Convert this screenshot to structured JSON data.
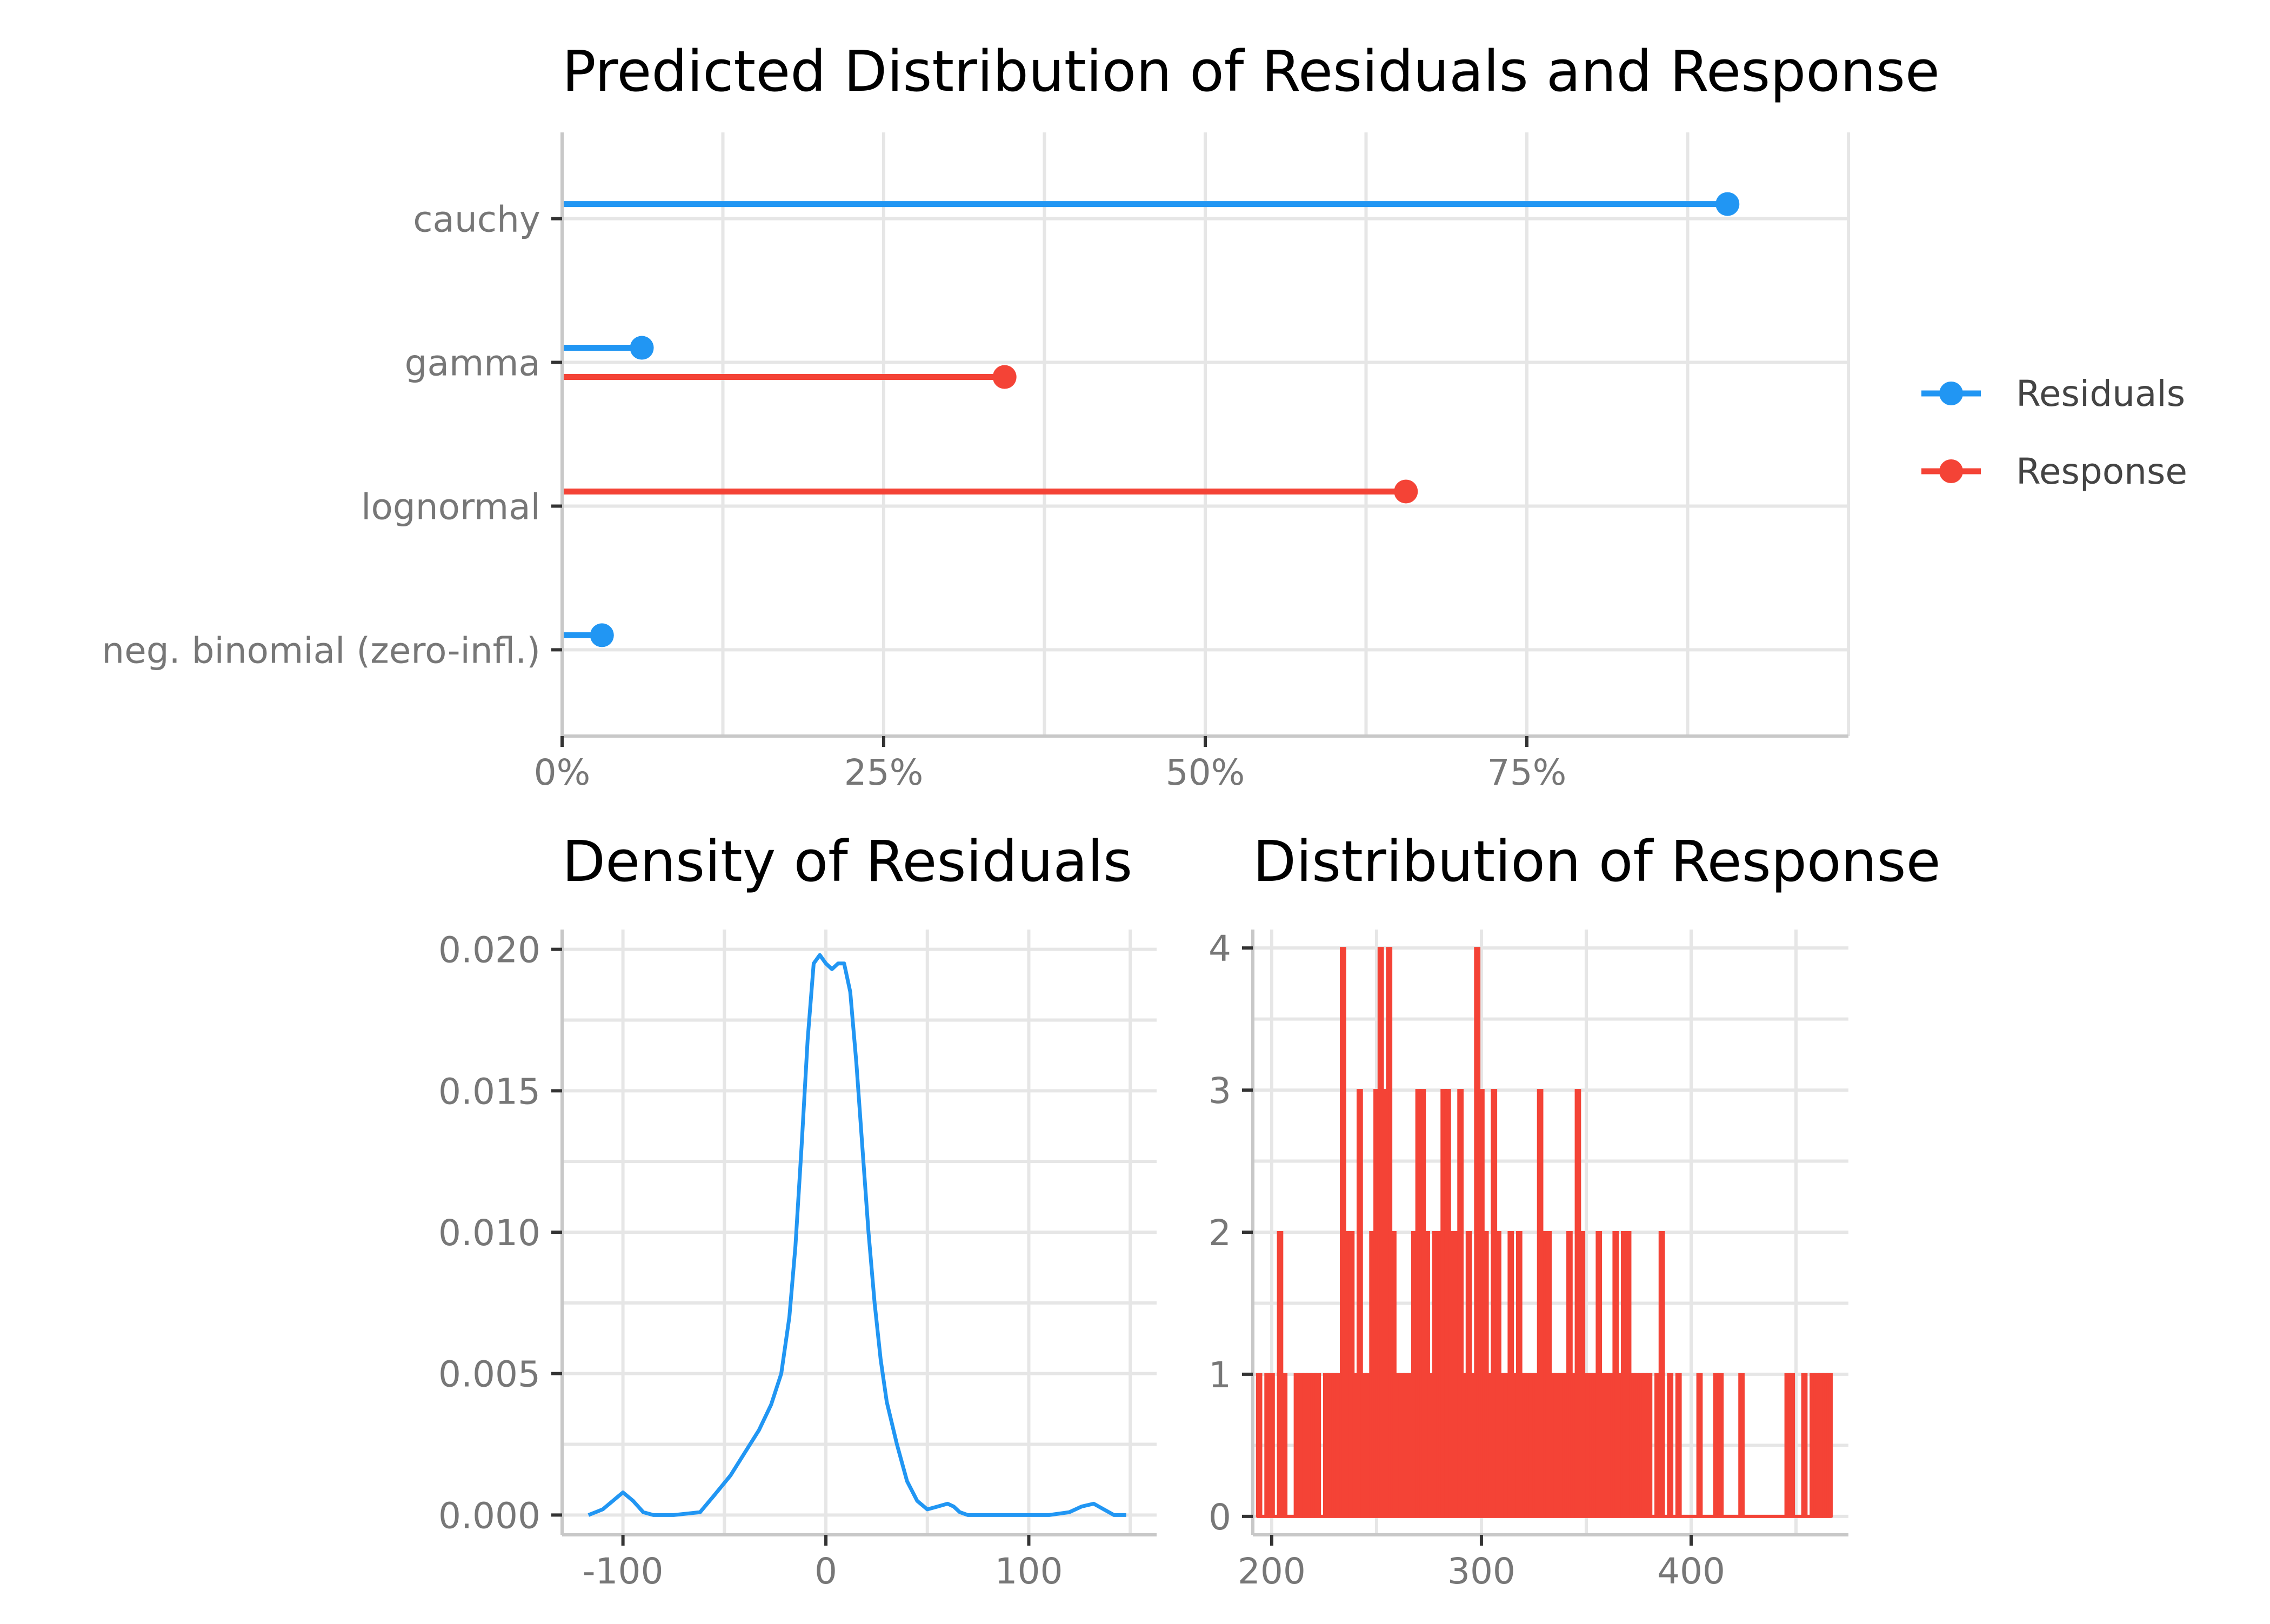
{
  "colors": {
    "residuals": "#2196F3",
    "response": "#F44336",
    "grid": "#e6e6e6",
    "axis": "#c8c8c8",
    "tick_text": "#777777"
  },
  "chart_data": [
    {
      "id": "lollipop",
      "type": "lollipop",
      "title": "Predicted Distribution of Residuals and Response",
      "orientation": "horizontal",
      "categories": [
        "cauchy",
        "gamma",
        "lognormal",
        "neg. binomial (zero-infl.)"
      ],
      "series": [
        {
          "name": "Residuals",
          "color": "#2196F3",
          "values": [
            0.906,
            0.062,
            null,
            0.031
          ]
        },
        {
          "name": "Response",
          "color": "#F44336",
          "values": [
            null,
            0.344,
            0.656,
            null
          ]
        }
      ],
      "xlim": [
        0,
        1.0
      ],
      "xticks": [
        0,
        0.25,
        0.5,
        0.75
      ],
      "xtick_labels": [
        "0%",
        "25%",
        "50%",
        "75%"
      ],
      "grid": true,
      "legend": {
        "position": "right",
        "entries": [
          "Residuals",
          "Response"
        ]
      }
    },
    {
      "id": "density",
      "type": "line",
      "title": "Density of Residuals",
      "xlim": [
        -130,
        163
      ],
      "ylim": [
        -0.0007,
        0.0207
      ],
      "xticks": [
        -100,
        0,
        100
      ],
      "xtick_labels": [
        "-100",
        "0",
        "100"
      ],
      "yticks": [
        0,
        0.005,
        0.01,
        0.015,
        0.02
      ],
      "ytick_labels": [
        "0.000",
        "0.005",
        "0.010",
        "0.015",
        "0.020"
      ],
      "grid": true,
      "series": [
        {
          "name": "",
          "color": "#2196F3",
          "x": [
            -117,
            -110,
            -105,
            -100,
            -95,
            -90,
            -85,
            -75,
            -62,
            -55,
            -47,
            -40,
            -33,
            -27,
            -22,
            -18,
            -15,
            -12,
            -9,
            -6,
            -3,
            0,
            3,
            6,
            9,
            12,
            15,
            18,
            21,
            24,
            27,
            30,
            35,
            40,
            45,
            50,
            55,
            60,
            63,
            66,
            70,
            80,
            95,
            110,
            120,
            126,
            132,
            137,
            142,
            148
          ],
          "y": [
            0.0,
            0.0002,
            0.0005,
            0.0008,
            0.0005,
            0.0001,
            0.0,
            0.0,
            0.0001,
            0.0007,
            0.0014,
            0.0022,
            0.003,
            0.0039,
            0.005,
            0.007,
            0.0095,
            0.013,
            0.0168,
            0.0195,
            0.0198,
            0.0195,
            0.0193,
            0.0195,
            0.0195,
            0.0185,
            0.016,
            0.013,
            0.01,
            0.0075,
            0.0055,
            0.004,
            0.0025,
            0.0012,
            0.0005,
            0.0002,
            0.0003,
            0.0004,
            0.0003,
            0.0001,
            0.0,
            0.0,
            0.0,
            0.0,
            0.0001,
            0.0003,
            0.0004,
            0.0002,
            0.0,
            0.0
          ]
        }
      ]
    },
    {
      "id": "histogram",
      "type": "bar",
      "title": "Distribution of Response",
      "xlim": [
        191,
        475
      ],
      "ylim": [
        -0.13,
        4.13
      ],
      "xticks": [
        200,
        300,
        400
      ],
      "xtick_labels": [
        "200",
        "300",
        "400"
      ],
      "yticks": [
        0,
        1,
        2,
        3,
        4
      ],
      "ytick_labels": [
        "0",
        "1",
        "2",
        "3",
        "4"
      ],
      "grid": true,
      "bin_width": 2,
      "bins": [
        [
          194,
          1
        ],
        [
          198,
          1
        ],
        [
          200,
          1
        ],
        [
          204,
          2
        ],
        [
          206,
          1
        ],
        [
          212,
          1
        ],
        [
          214,
          1
        ],
        [
          216,
          1
        ],
        [
          218,
          1
        ],
        [
          220,
          1
        ],
        [
          222,
          1
        ],
        [
          226,
          1
        ],
        [
          228,
          1
        ],
        [
          230,
          1
        ],
        [
          232,
          1
        ],
        [
          234,
          4
        ],
        [
          236,
          2
        ],
        [
          238,
          2
        ],
        [
          240,
          1
        ],
        [
          242,
          3
        ],
        [
          244,
          1
        ],
        [
          246,
          1
        ],
        [
          248,
          2
        ],
        [
          250,
          3
        ],
        [
          252,
          4
        ],
        [
          254,
          3
        ],
        [
          256,
          4
        ],
        [
          258,
          2
        ],
        [
          260,
          1
        ],
        [
          262,
          1
        ],
        [
          264,
          1
        ],
        [
          266,
          1
        ],
        [
          268,
          2
        ],
        [
          270,
          3
        ],
        [
          272,
          3
        ],
        [
          274,
          2
        ],
        [
          276,
          1
        ],
        [
          278,
          2
        ],
        [
          280,
          2
        ],
        [
          282,
          3
        ],
        [
          284,
          3
        ],
        [
          286,
          2
        ],
        [
          288,
          2
        ],
        [
          290,
          3
        ],
        [
          292,
          1
        ],
        [
          294,
          2
        ],
        [
          296,
          1
        ],
        [
          298,
          4
        ],
        [
          300,
          3
        ],
        [
          302,
          2
        ],
        [
          304,
          1
        ],
        [
          306,
          3
        ],
        [
          308,
          2
        ],
        [
          310,
          1
        ],
        [
          312,
          1
        ],
        [
          314,
          2
        ],
        [
          316,
          1
        ],
        [
          318,
          2
        ],
        [
          320,
          1
        ],
        [
          322,
          1
        ],
        [
          324,
          1
        ],
        [
          326,
          1
        ],
        [
          328,
          3
        ],
        [
          330,
          2
        ],
        [
          332,
          2
        ],
        [
          334,
          1
        ],
        [
          336,
          1
        ],
        [
          338,
          1
        ],
        [
          340,
          1
        ],
        [
          342,
          2
        ],
        [
          344,
          1
        ],
        [
          346,
          3
        ],
        [
          348,
          2
        ],
        [
          350,
          1
        ],
        [
          352,
          1
        ],
        [
          354,
          1
        ],
        [
          356,
          2
        ],
        [
          358,
          1
        ],
        [
          360,
          1
        ],
        [
          362,
          1
        ],
        [
          364,
          2
        ],
        [
          366,
          1
        ],
        [
          368,
          2
        ],
        [
          370,
          2
        ],
        [
          372,
          1
        ],
        [
          374,
          1
        ],
        [
          376,
          1
        ],
        [
          378,
          1
        ],
        [
          380,
          1
        ],
        [
          384,
          1
        ],
        [
          386,
          2
        ],
        [
          390,
          1
        ],
        [
          394,
          1
        ],
        [
          404,
          1
        ],
        [
          412,
          1
        ],
        [
          414,
          1
        ],
        [
          424,
          1
        ],
        [
          446,
          1
        ],
        [
          448,
          1
        ],
        [
          454,
          1
        ],
        [
          458,
          1
        ],
        [
          460,
          1
        ],
        [
          462,
          1
        ],
        [
          464,
          1
        ],
        [
          466,
          1
        ]
      ]
    }
  ]
}
